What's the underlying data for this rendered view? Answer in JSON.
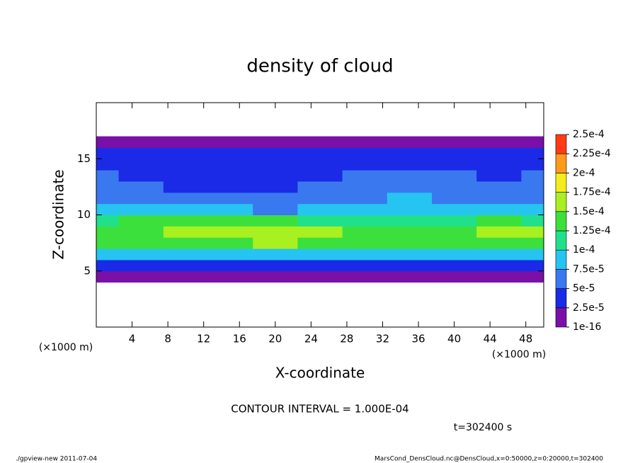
{
  "chart_data": {
    "type": "heatmap",
    "title": "density of cloud",
    "x_label": "X-coordinate",
    "y_label": "Z-coordinate",
    "x_unit_left": "(×1000 m)",
    "x_unit_right": "(×1000 m)",
    "contour_note": "CONTOUR INTERVAL = 1.000E-04",
    "time_note": "t=302400 s",
    "footer_left": "./gpview-new  2011-07-04",
    "footer_right": "MarsCond_DensCloud.nc@DensCloud,x=0:50000,z=0:20000,t=302400",
    "xlim": [
      0,
      50
    ],
    "ylim": [
      0,
      20
    ],
    "xticks": [
      4,
      8,
      12,
      16,
      20,
      24,
      28,
      32,
      36,
      40,
      44,
      48
    ],
    "yticks": [
      5,
      10,
      15
    ],
    "x": [
      0,
      5,
      10,
      15,
      20,
      25,
      30,
      35,
      40,
      45,
      50
    ],
    "y": [
      4.5,
      5.5,
      6.5,
      7.5,
      8.5,
      9.5,
      10.5,
      11.5,
      12.5,
      13.5,
      14.5,
      15.5,
      16.5
    ],
    "values": [
      [
        1.2e-05,
        1e-05,
        1.1e-05,
        1.3e-05,
        1.2e-05,
        1e-05,
        1.1e-05,
        1e-05,
        1.2e-05,
        1.1e-05,
        1e-05
      ],
      [
        4.2e-05,
        4.5e-05,
        4e-05,
        3.8e-05,
        4.4e-05,
        3.5e-05,
        3.2e-05,
        3.6e-05,
        4.1e-05,
        4.6e-05,
        4.3e-05
      ],
      [
        9e-05,
        8.8e-05,
        9.5e-05,
        9.2e-05,
        8.5e-05,
        8e-05,
        8.2e-05,
        8.6e-05,
        9.1e-05,
        9.4e-05,
        9e-05
      ],
      [
        0.00013,
        0.000135,
        0.00014,
        0.000145,
        0.00015,
        0.000142,
        0.00013,
        0.000128,
        0.000135,
        0.000145,
        0.00014
      ],
      [
        0.00014,
        0.000145,
        0.00015,
        0.000155,
        0.000162,
        0.000152,
        0.00014,
        0.000138,
        0.000142,
        0.000158,
        0.00015
      ],
      [
        0.00012,
        0.000125,
        0.00013,
        0.000128,
        0.000132,
        0.000122,
        0.00011,
        0.000105,
        0.00011,
        0.000125,
        0.00012
      ],
      [
        8.5e-05,
        8e-05,
        8.2e-05,
        7.8e-05,
        6.8e-05,
        8e-05,
        9e-05,
        9.5e-05,
        8.8e-05,
        8.2e-05,
        8.6e-05
      ],
      [
        6.5e-05,
        6.2e-05,
        6e-05,
        5.5e-05,
        5e-05,
        6e-05,
        7e-05,
        7.8e-05,
        7.2e-05,
        6.5e-05,
        6.8e-05
      ],
      [
        5.5e-05,
        5e-05,
        4.6e-05,
        4.4e-05,
        4.8e-05,
        5.2e-05,
        5.6e-05,
        6e-05,
        5.8e-05,
        5.4e-05,
        5.6e-05
      ],
      [
        5e-05,
        4.8e-05,
        4.2e-05,
        4e-05,
        4.5e-05,
        4.8e-05,
        5e-05,
        5.2e-05,
        5e-05,
        4.8e-05,
        5e-05
      ],
      [
        4.4e-05,
        4.2e-05,
        4e-05,
        3.8e-05,
        4.2e-05,
        4.4e-05,
        4.6e-05,
        4.4e-05,
        4.2e-05,
        4.4e-05,
        4.5e-05
      ],
      [
        3e-05,
        2.8e-05,
        3e-05,
        2.9e-05,
        3.1e-05,
        3e-05,
        2.8e-05,
        3e-05,
        3.2e-05,
        3e-05,
        2.9e-05
      ],
      [
        8e-06,
        9e-06,
        1e-05,
        9e-06,
        8e-06,
        1e-05,
        9e-06,
        8e-06,
        9e-06,
        1e-05,
        9e-06
      ]
    ],
    "colorbar_ticks": [
      {
        "value": 1e-16,
        "label": "1e-16"
      },
      {
        "value": 2.5e-05,
        "label": "2.5e-5"
      },
      {
        "value": 5e-05,
        "label": "5e-5"
      },
      {
        "value": 7.5e-05,
        "label": "7.5e-5"
      },
      {
        "value": 0.0001,
        "label": "1e-4"
      },
      {
        "value": 0.000125,
        "label": "1.25e-4"
      },
      {
        "value": 0.00015,
        "label": "1.5e-4"
      },
      {
        "value": 0.000175,
        "label": "1.75e-4"
      },
      {
        "value": 0.0002,
        "label": "2e-4"
      },
      {
        "value": 0.000225,
        "label": "2.25e-4"
      },
      {
        "value": 0.00025,
        "label": "2.5e-4"
      }
    ],
    "colors": [
      "#7a10a8",
      "#1a2ae6",
      "#3a78f0",
      "#26c4f0",
      "#20e08c",
      "#3ce03c",
      "#a8f020",
      "#f4ec1c",
      "#ff9a1c",
      "#ff3a14",
      "#ff9a9a"
    ]
  }
}
